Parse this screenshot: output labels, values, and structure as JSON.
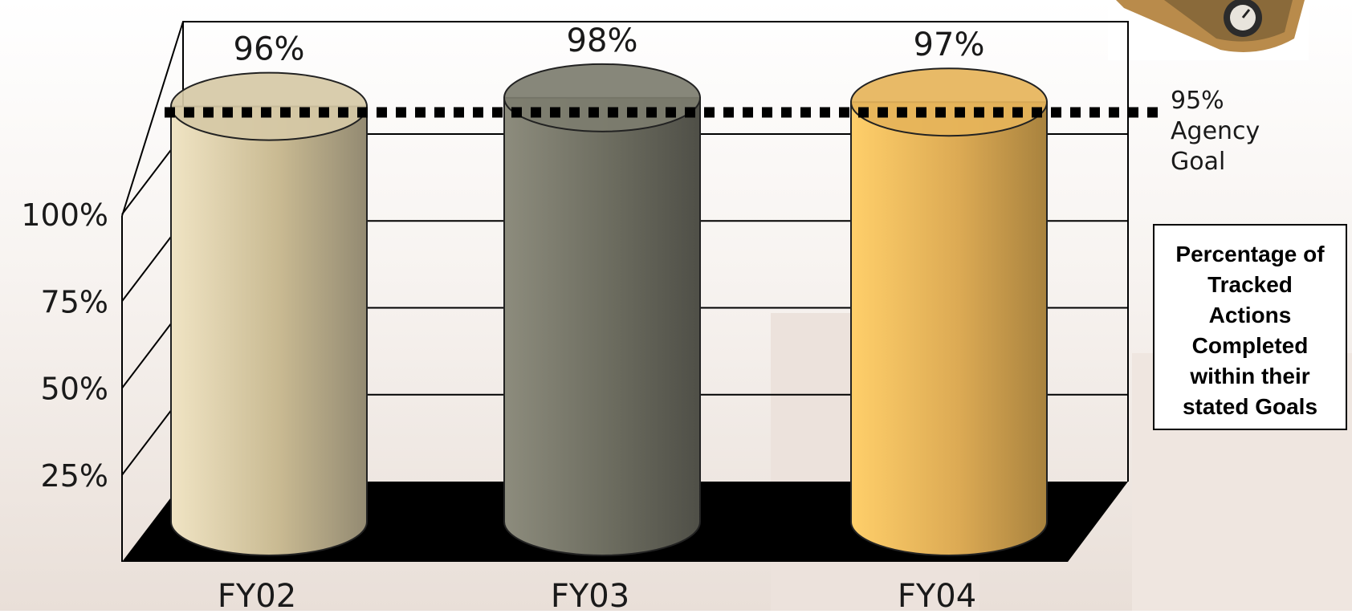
{
  "chart_data": {
    "type": "bar",
    "categories": [
      "FY02",
      "FY03",
      "FY04"
    ],
    "values": [
      96,
      98,
      97
    ],
    "value_labels": [
      "96%",
      "98%",
      "97%"
    ],
    "ylim": [
      0,
      100
    ],
    "yticks": [
      "25%",
      "50%",
      "75%",
      "100%"
    ],
    "ytick_values": [
      25,
      50,
      75,
      100
    ],
    "grid": true,
    "colors": {
      "FY02": "#d6c9a6",
      "FY03": "#7d7d6f",
      "FY04": "#e6b45a",
      "floor": "#000000",
      "goal_line": "#000000"
    },
    "goal": {
      "value": 95,
      "lines": [
        "95%",
        "Agency",
        "Goal"
      ]
    },
    "legend": {
      "position": "right",
      "lines": [
        "Percentage of",
        "Tracked",
        "Actions",
        "Completed",
        "within their",
        "stated Goals"
      ]
    }
  }
}
